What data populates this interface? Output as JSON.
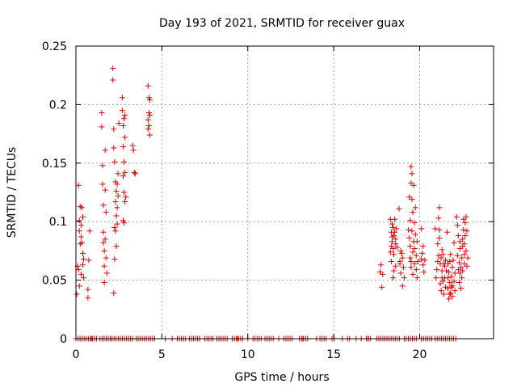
{
  "chart_data": {
    "type": "scatter",
    "title": "Day 193 of 2021, SRMTID for receiver guax",
    "xlabel": "GPS time / hours",
    "ylabel": "SRMTID / TECUs",
    "xlim": [
      0,
      24.3
    ],
    "ylim": [
      0,
      0.25
    ],
    "x_ticks": [
      0,
      5,
      10,
      15,
      20
    ],
    "y_ticks": [
      0,
      0.05,
      0.1,
      0.15,
      0.2,
      0.25
    ],
    "x_tick_labels": [
      "0",
      "5",
      "10",
      "15",
      "20"
    ],
    "y_tick_labels": [
      "0",
      "0.05",
      "0.1",
      "0.15",
      "0.2",
      "0.25"
    ],
    "grid": true,
    "marker": "+",
    "color": "#e00000",
    "series": [
      {
        "name": "SRMTID",
        "points": [
          [
            0.05,
            0.038
          ],
          [
            0.1,
            0.062
          ],
          [
            0.15,
            0.059
          ],
          [
            0.15,
            0.131
          ],
          [
            0.2,
            0.045
          ],
          [
            0.2,
            0.092
          ],
          [
            0.2,
            0.101
          ],
          [
            0.25,
            0.081
          ],
          [
            0.25,
            0.113
          ],
          [
            0.3,
            0.055
          ],
          [
            0.3,
            0.097
          ],
          [
            0.35,
            0.112
          ],
          [
            0.35,
            0.082
          ],
          [
            0.4,
            0.073
          ],
          [
            0.4,
            0.104
          ],
          [
            0.45,
            0.068
          ],
          [
            0.45,
            0.052
          ],
          [
            0.3,
            0.087
          ],
          [
            0.4,
            0.063
          ],
          [
            0.7,
            0.035
          ],
          [
            0.7,
            0.042
          ],
          [
            0.75,
            0.067
          ],
          [
            0.8,
            0.092
          ],
          [
            1.5,
            0.193
          ],
          [
            1.5,
            0.181
          ],
          [
            1.55,
            0.132
          ],
          [
            1.55,
            0.148
          ],
          [
            1.6,
            0.091
          ],
          [
            1.6,
            0.114
          ],
          [
            1.6,
            0.082
          ],
          [
            1.65,
            0.075
          ],
          [
            1.65,
            0.062
          ],
          [
            1.7,
            0.161
          ],
          [
            1.7,
            0.127
          ],
          [
            1.75,
            0.108
          ],
          [
            1.75,
            0.069
          ],
          [
            1.65,
            0.048
          ],
          [
            1.7,
            0.085
          ],
          [
            1.8,
            0.056
          ],
          [
            2.15,
            0.231
          ],
          [
            2.15,
            0.221
          ],
          [
            2.2,
            0.179
          ],
          [
            2.2,
            0.039
          ],
          [
            2.25,
            0.068
          ],
          [
            2.25,
            0.151
          ],
          [
            2.3,
            0.134
          ],
          [
            2.3,
            0.117
          ],
          [
            2.3,
            0.092
          ],
          [
            2.35,
            0.126
          ],
          [
            2.35,
            0.105
          ],
          [
            2.4,
            0.132
          ],
          [
            2.4,
            0.112
          ],
          [
            2.4,
            0.098
          ],
          [
            2.45,
            0.122
          ],
          [
            2.45,
            0.141
          ],
          [
            2.5,
            0.184
          ],
          [
            2.2,
            0.163
          ],
          [
            2.25,
            0.095
          ],
          [
            2.35,
            0.079
          ],
          [
            2.7,
            0.206
          ],
          [
            2.7,
            0.195
          ],
          [
            2.75,
            0.164
          ],
          [
            2.75,
            0.139
          ],
          [
            2.8,
            0.188
          ],
          [
            2.8,
            0.099
          ],
          [
            2.85,
            0.191
          ],
          [
            2.85,
            0.142
          ],
          [
            2.85,
            0.117
          ],
          [
            2.8,
            0.125
          ],
          [
            2.9,
            0.121
          ],
          [
            2.75,
            0.101
          ],
          [
            2.85,
            0.172
          ],
          [
            2.8,
            0.151
          ],
          [
            2.75,
            0.182
          ],
          [
            3.3,
            0.165
          ],
          [
            3.35,
            0.161
          ],
          [
            3.4,
            0.142
          ],
          [
            3.45,
            0.141
          ],
          [
            4.2,
            0.216
          ],
          [
            4.25,
            0.206
          ],
          [
            4.3,
            0.204
          ],
          [
            4.25,
            0.193
          ],
          [
            4.3,
            0.191
          ],
          [
            4.2,
            0.187
          ],
          [
            4.25,
            0.182
          ],
          [
            4.3,
            0.174
          ],
          [
            4.2,
            0.179
          ],
          [
            17.7,
            0.057
          ],
          [
            17.75,
            0.063
          ],
          [
            17.8,
            0.044
          ],
          [
            17.85,
            0.055
          ],
          [
            18.3,
            0.102
          ],
          [
            18.3,
            0.074
          ],
          [
            18.35,
            0.091
          ],
          [
            18.35,
            0.066
          ],
          [
            18.4,
            0.098
          ],
          [
            18.4,
            0.083
          ],
          [
            18.45,
            0.095
          ],
          [
            18.45,
            0.077
          ],
          [
            18.5,
            0.088
          ],
          [
            18.5,
            0.072
          ],
          [
            18.55,
            0.102
          ],
          [
            18.55,
            0.091
          ],
          [
            18.6,
            0.085
          ],
          [
            18.6,
            0.062
          ],
          [
            18.65,
            0.094
          ],
          [
            18.5,
            0.058
          ],
          [
            18.45,
            0.052
          ],
          [
            18.4,
            0.087
          ],
          [
            18.35,
            0.079
          ],
          [
            18.6,
            0.081
          ],
          [
            18.7,
            0.078
          ],
          [
            18.8,
            0.111
          ],
          [
            18.85,
            0.064
          ],
          [
            18.9,
            0.075
          ],
          [
            18.95,
            0.073
          ],
          [
            19.0,
            0.045
          ],
          [
            19.05,
            0.061
          ],
          [
            18.9,
            0.056
          ],
          [
            19.0,
            0.069
          ],
          [
            19.1,
            0.052
          ],
          [
            18.85,
            0.066
          ],
          [
            19.35,
            0.093
          ],
          [
            19.4,
            0.121
          ],
          [
            19.4,
            0.086
          ],
          [
            19.45,
            0.101
          ],
          [
            19.45,
            0.079
          ],
          [
            19.5,
            0.147
          ],
          [
            19.5,
            0.133
          ],
          [
            19.5,
            0.066
          ],
          [
            19.55,
            0.141
          ],
          [
            19.55,
            0.119
          ],
          [
            19.55,
            0.092
          ],
          [
            19.6,
            0.108
          ],
          [
            19.6,
            0.074
          ],
          [
            19.65,
            0.131
          ],
          [
            19.65,
            0.083
          ],
          [
            19.7,
            0.099
          ],
          [
            19.7,
            0.064
          ],
          [
            19.75,
            0.112
          ],
          [
            19.75,
            0.089
          ],
          [
            19.8,
            0.071
          ],
          [
            19.8,
            0.059
          ],
          [
            19.85,
            0.083
          ],
          [
            19.85,
            0.052
          ],
          [
            19.9,
            0.066
          ],
          [
            19.5,
            0.061
          ],
          [
            19.6,
            0.055
          ],
          [
            19.45,
            0.069
          ],
          [
            19.7,
            0.077
          ],
          [
            20.1,
            0.094
          ],
          [
            20.1,
            0.068
          ],
          [
            20.15,
            0.073
          ],
          [
            20.2,
            0.079
          ],
          [
            20.2,
            0.063
          ],
          [
            20.25,
            0.057
          ],
          [
            20.3,
            0.067
          ],
          [
            20.9,
            0.094
          ],
          [
            20.95,
            0.052
          ],
          [
            21.0,
            0.059
          ],
          [
            21.05,
            0.081
          ],
          [
            21.05,
            0.066
          ],
          [
            21.1,
            0.103
          ],
          [
            21.1,
            0.071
          ],
          [
            21.15,
            0.112
          ],
          [
            21.15,
            0.093
          ],
          [
            21.2,
            0.064
          ],
          [
            21.2,
            0.047
          ],
          [
            21.25,
            0.069
          ],
          [
            21.25,
            0.041
          ],
          [
            21.3,
            0.076
          ],
          [
            21.3,
            0.058
          ],
          [
            21.35,
            0.049
          ],
          [
            21.35,
            0.072
          ],
          [
            21.4,
            0.064
          ],
          [
            21.4,
            0.038
          ],
          [
            21.45,
            0.052
          ],
          [
            21.5,
            0.067
          ],
          [
            21.5,
            0.044
          ],
          [
            21.55,
            0.058
          ],
          [
            21.15,
            0.086
          ],
          [
            21.3,
            0.052
          ],
          [
            21.45,
            0.062
          ],
          [
            21.6,
            0.091
          ],
          [
            21.65,
            0.064
          ],
          [
            21.65,
            0.043
          ],
          [
            21.7,
            0.034
          ],
          [
            21.7,
            0.057
          ],
          [
            21.75,
            0.048
          ],
          [
            21.75,
            0.066
          ],
          [
            21.8,
            0.039
          ],
          [
            21.8,
            0.072
          ],
          [
            21.85,
            0.053
          ],
          [
            21.85,
            0.044
          ],
          [
            21.9,
            0.061
          ],
          [
            21.9,
            0.036
          ],
          [
            21.95,
            0.067
          ],
          [
            22.0,
            0.049
          ],
          [
            22.0,
            0.082
          ],
          [
            22.05,
            0.056
          ],
          [
            22.05,
            0.041
          ],
          [
            21.65,
            0.052
          ],
          [
            21.75,
            0.038
          ],
          [
            21.9,
            0.045
          ],
          [
            22.15,
            0.104
          ],
          [
            22.2,
            0.097
          ],
          [
            22.2,
            0.071
          ],
          [
            22.25,
            0.059
          ],
          [
            22.25,
            0.088
          ],
          [
            22.3,
            0.065
          ],
          [
            22.3,
            0.048
          ],
          [
            22.35,
            0.056
          ],
          [
            22.35,
            0.077
          ],
          [
            22.4,
            0.061
          ],
          [
            22.4,
            0.043
          ],
          [
            22.45,
            0.069
          ],
          [
            22.5,
            0.085
          ],
          [
            22.5,
            0.058
          ],
          [
            22.55,
            0.102
          ],
          [
            22.55,
            0.093
          ],
          [
            22.6,
            0.081
          ],
          [
            22.6,
            0.064
          ],
          [
            22.65,
            0.088
          ],
          [
            22.65,
            0.099
          ],
          [
            22.7,
            0.075
          ],
          [
            22.7,
            0.104
          ],
          [
            22.75,
            0.062
          ],
          [
            22.75,
            0.092
          ],
          [
            22.8,
            0.069
          ],
          [
            22.45,
            0.052
          ],
          [
            22.6,
            0.072
          ],
          [
            22.35,
            0.083
          ],
          [
            22.5,
            0.079
          ]
        ]
      }
    ]
  }
}
